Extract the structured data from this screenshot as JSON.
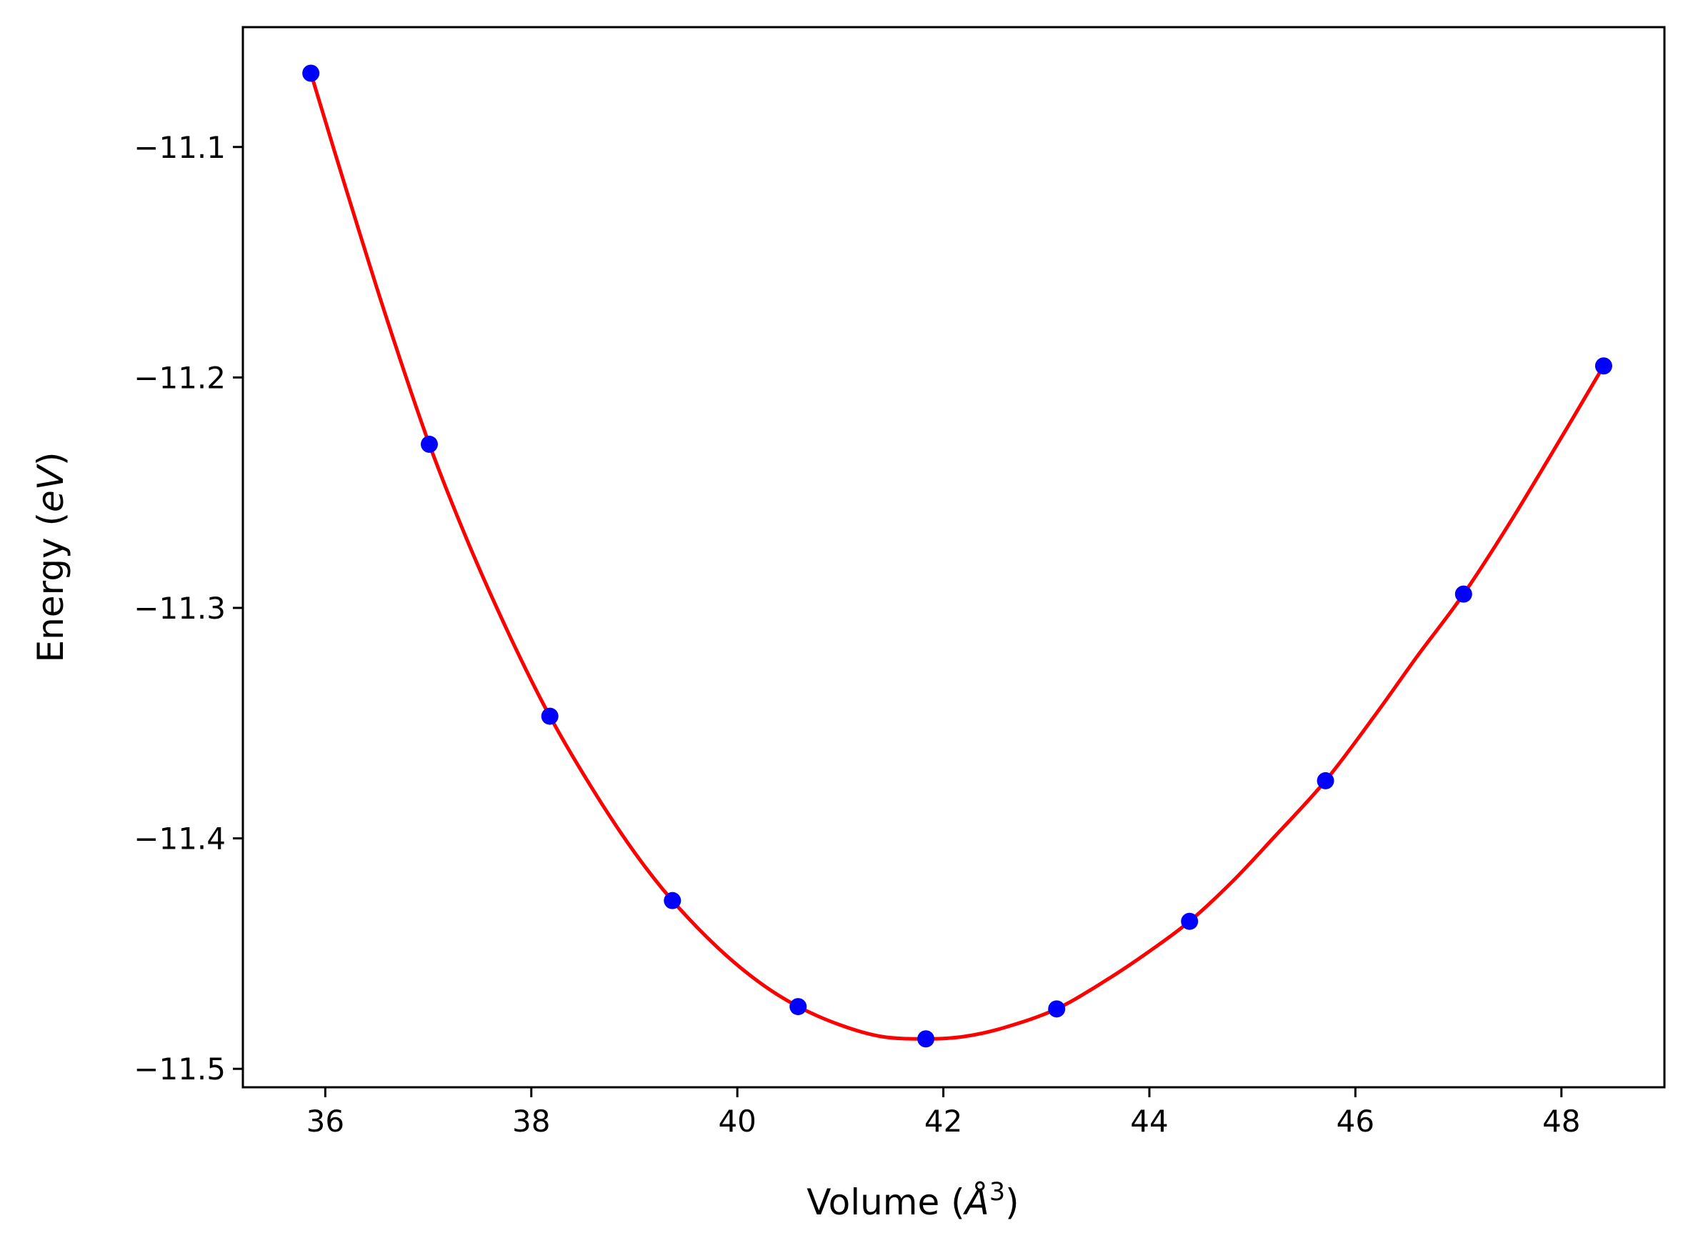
{
  "chart_data": {
    "type": "line",
    "xlabel_prefix": "Volume (",
    "xlabel_unit": "Å",
    "xlabel_exp": "3",
    "xlabel_suffix": ")",
    "ylabel_prefix": "Energy (",
    "ylabel_unit": "eV",
    "ylabel_suffix": ")",
    "xlim": [
      35.2,
      49.0
    ],
    "ylim": [
      -11.508,
      -11.048
    ],
    "xticks": [
      36,
      38,
      40,
      42,
      44,
      46,
      48
    ],
    "xtick_labels": [
      "36",
      "38",
      "40",
      "42",
      "44",
      "46",
      "48"
    ],
    "yticks": [
      -11.1,
      -11.2,
      -11.3,
      -11.4,
      -11.5
    ],
    "ytick_labels": [
      "−11.1",
      "−11.2",
      "−11.3",
      "−11.4",
      "−11.5"
    ],
    "grid": false,
    "series": [
      {
        "kind": "scatter",
        "color": "#0000ff",
        "x": [
          35.86,
          37.01,
          38.18,
          39.37,
          40.59,
          41.83,
          43.1,
          44.39,
          45.71,
          47.05,
          48.41
        ],
        "y": [
          -11.068,
          -11.229,
          -11.347,
          -11.427,
          -11.473,
          -11.487,
          -11.474,
          -11.436,
          -11.375,
          -11.294,
          -11.195
        ]
      },
      {
        "kind": "line",
        "color": "#ff0000",
        "x": [
          35.86,
          36.2,
          36.6,
          37.01,
          37.4,
          37.8,
          38.18,
          38.6,
          39.0,
          39.37,
          39.8,
          40.2,
          40.59,
          41.0,
          41.4,
          41.83,
          42.2,
          42.6,
          43.1,
          43.6,
          44.0,
          44.39,
          44.8,
          45.2,
          45.71,
          46.2,
          46.6,
          47.05,
          47.5,
          48.0,
          48.41
        ],
        "y": [
          -11.068,
          -11.118,
          -11.175,
          -11.229,
          -11.273,
          -11.313,
          -11.347,
          -11.379,
          -11.406,
          -11.427,
          -11.447,
          -11.462,
          -11.473,
          -11.481,
          -11.486,
          -11.487,
          -11.486,
          -11.482,
          -11.474,
          -11.461,
          -11.449,
          -11.436,
          -11.419,
          -11.4,
          -11.375,
          -11.346,
          -11.321,
          -11.294,
          -11.263,
          -11.226,
          -11.195
        ]
      }
    ]
  }
}
